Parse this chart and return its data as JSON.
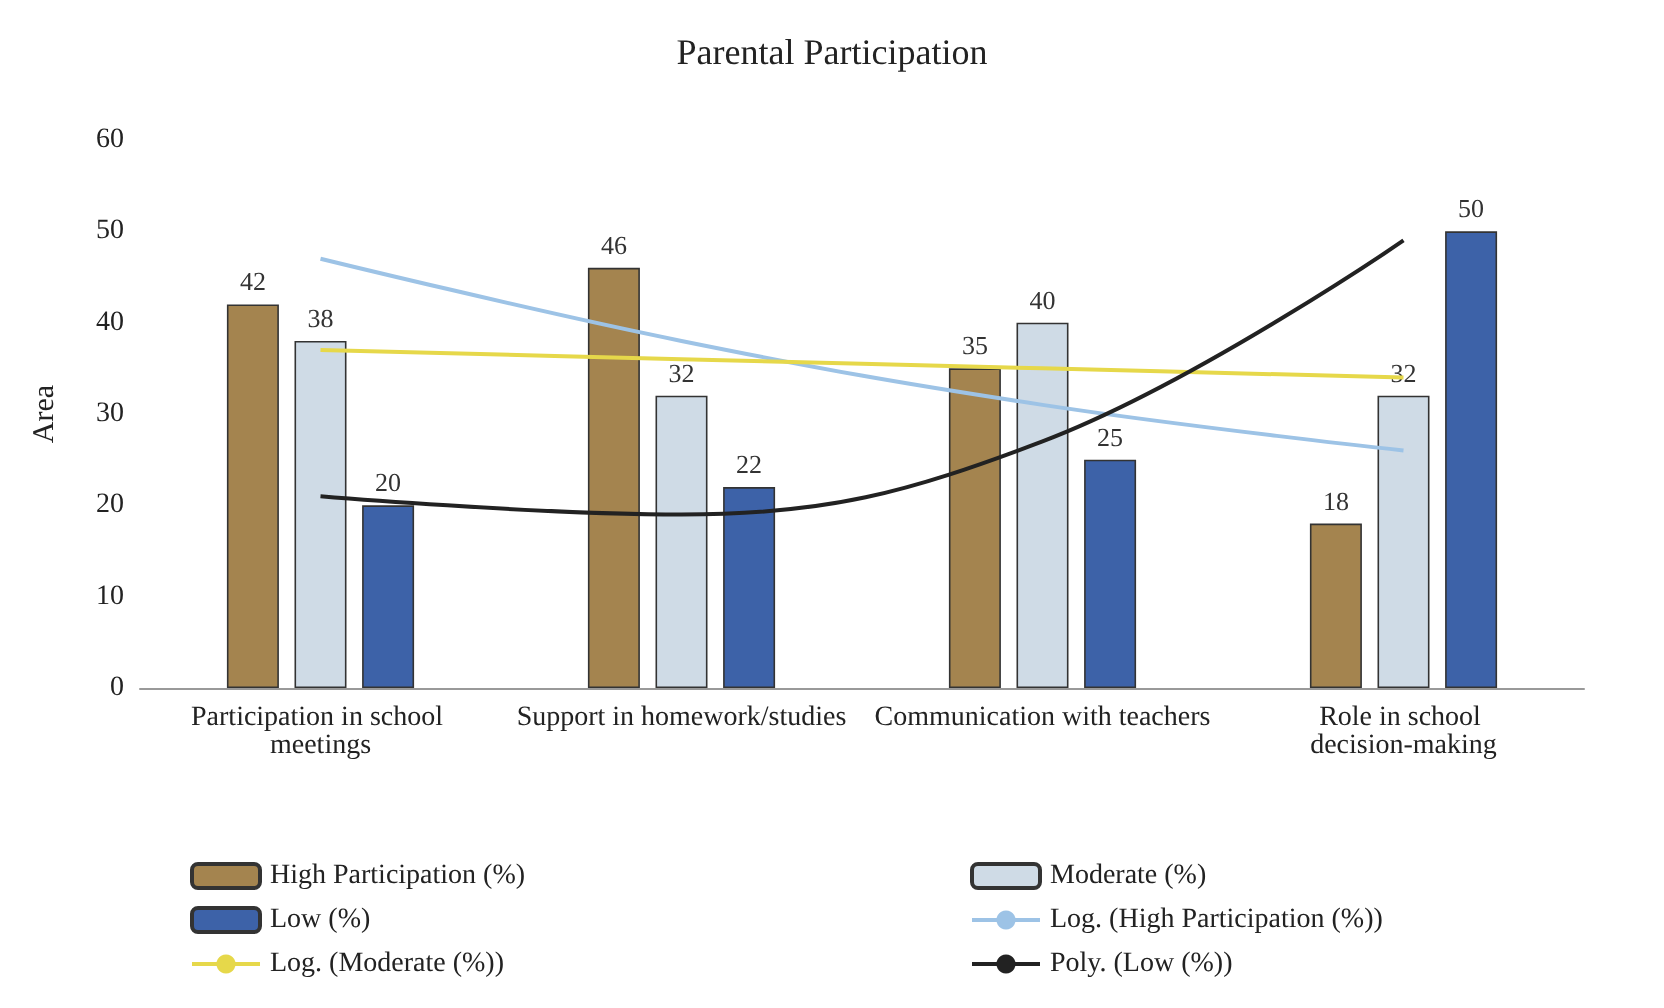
{
  "chart_data": {
    "type": "bar",
    "title": "Parental Participation",
    "ylabel": "Area",
    "categories": [
      "Participation in school meetings",
      "Support in homework/studies",
      "Communication with teachers",
      "Role in school decision-making"
    ],
    "series": [
      {
        "name": "High Participation (%)",
        "color": "#a4844f",
        "values": [
          42,
          46,
          35,
          18
        ],
        "value_labels": [
          "42",
          "46",
          "35",
          "18"
        ]
      },
      {
        "name": "Moderate (%)",
        "color": "#cfdbe6",
        "values": [
          38,
          32,
          40,
          32
        ],
        "value_labels": [
          "38",
          "32",
          "40",
          "32"
        ]
      },
      {
        "name": "Low (%)",
        "color": "#3d62a8",
        "values": [
          20,
          22,
          25,
          50
        ],
        "value_labels": [
          "20",
          "22",
          "25",
          "50"
        ]
      },
      {
        "name": "Log. (High Participation (%))",
        "type": "line",
        "color": "#9dc3e6",
        "values": [
          47,
          38,
          31,
          26
        ]
      },
      {
        "name": "Log. (Moderate (%))",
        "type": "line",
        "color": "#e6d84a",
        "values": [
          37,
          36,
          35,
          34
        ]
      },
      {
        "name": "Poly. (Low (%))",
        "type": "line",
        "color": "#222222",
        "values": [
          21,
          19,
          27,
          49
        ]
      }
    ],
    "ylim": [
      0,
      60
    ],
    "yticks": [
      0,
      10,
      20,
      30,
      40,
      50,
      60
    ],
    "grid": false,
    "legend": "bottom",
    "marker": "none"
  }
}
